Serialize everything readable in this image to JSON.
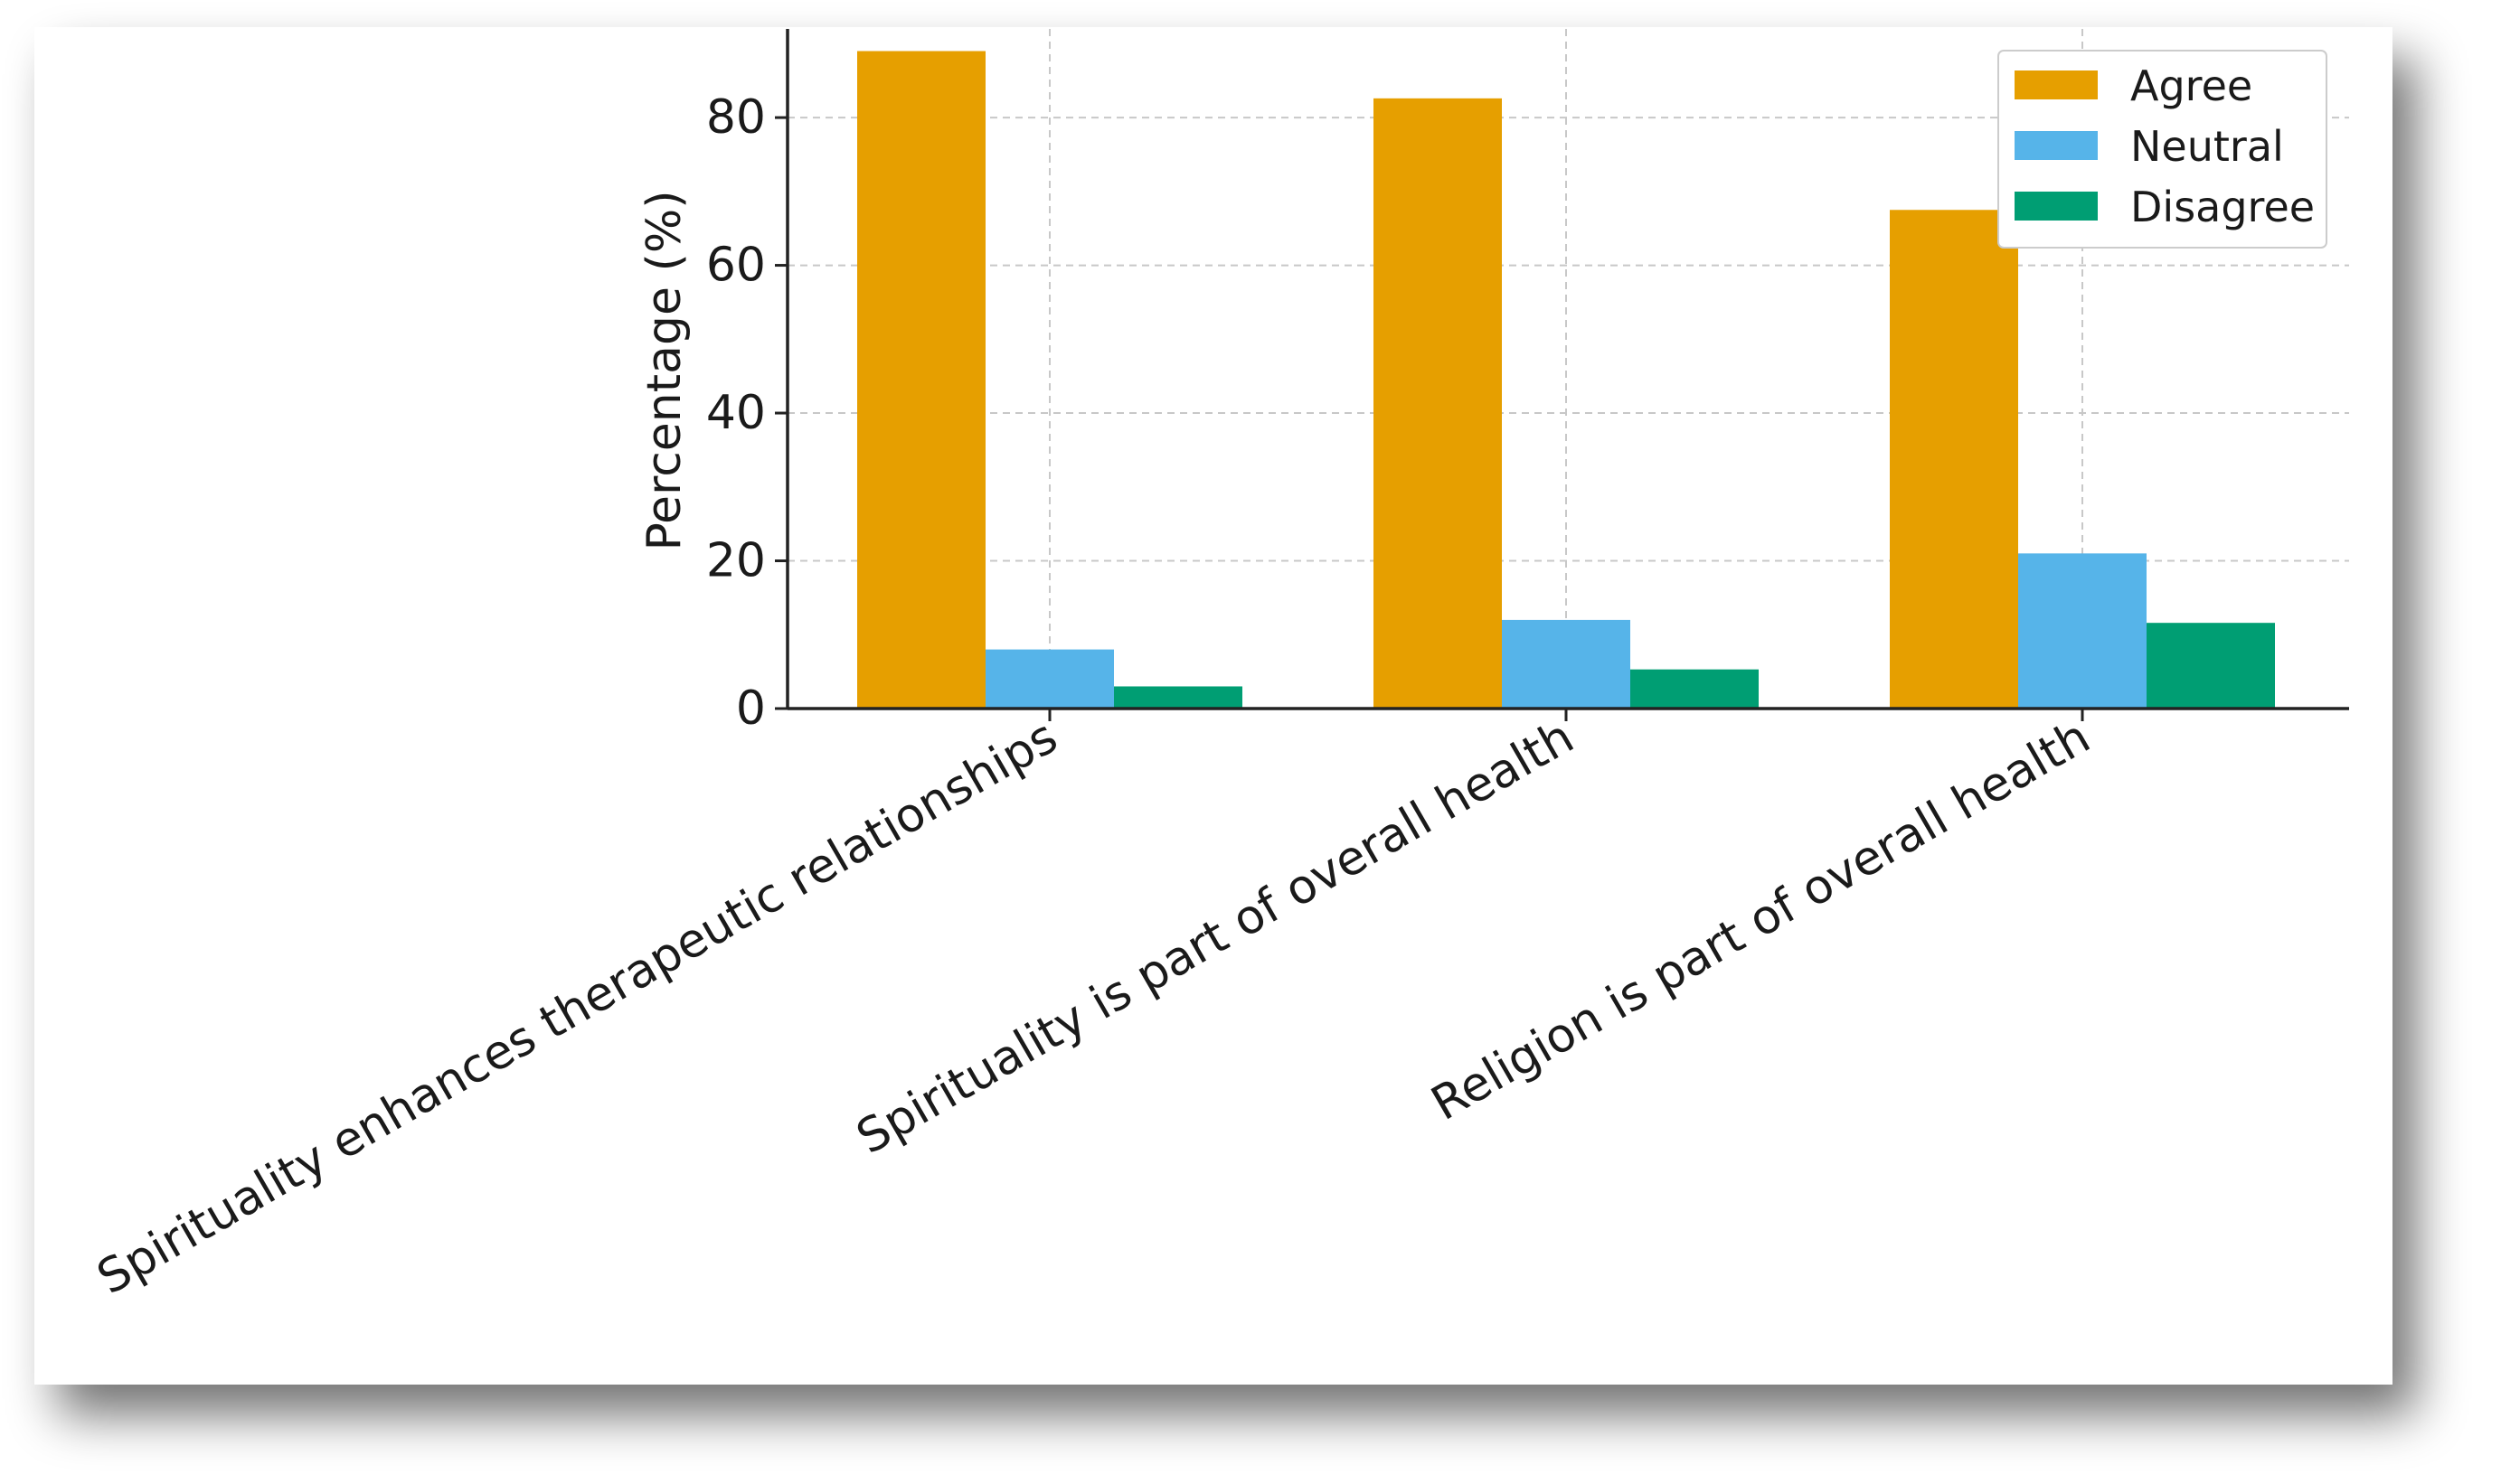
{
  "chart_data": {
    "type": "bar",
    "title": "",
    "xlabel": "",
    "ylabel": "Percentage (%)",
    "ylim": [
      0,
      92
    ],
    "yticks": [
      0,
      20,
      40,
      60,
      80
    ],
    "grid": true,
    "legend_position": "top-right",
    "categories": [
      "Spirituality enhances therapeutic relationships",
      "Spirituality is part of overall health",
      "Religion is part of overall health"
    ],
    "series": [
      {
        "name": "Agree",
        "color": "#E69F00",
        "values": [
          89,
          82.6,
          67.5
        ]
      },
      {
        "name": "Neutral",
        "color": "#56B4E9",
        "values": [
          8,
          12,
          21
        ]
      },
      {
        "name": "Disagree",
        "color": "#009E73",
        "values": [
          3,
          5.3,
          11.6
        ]
      }
    ]
  }
}
